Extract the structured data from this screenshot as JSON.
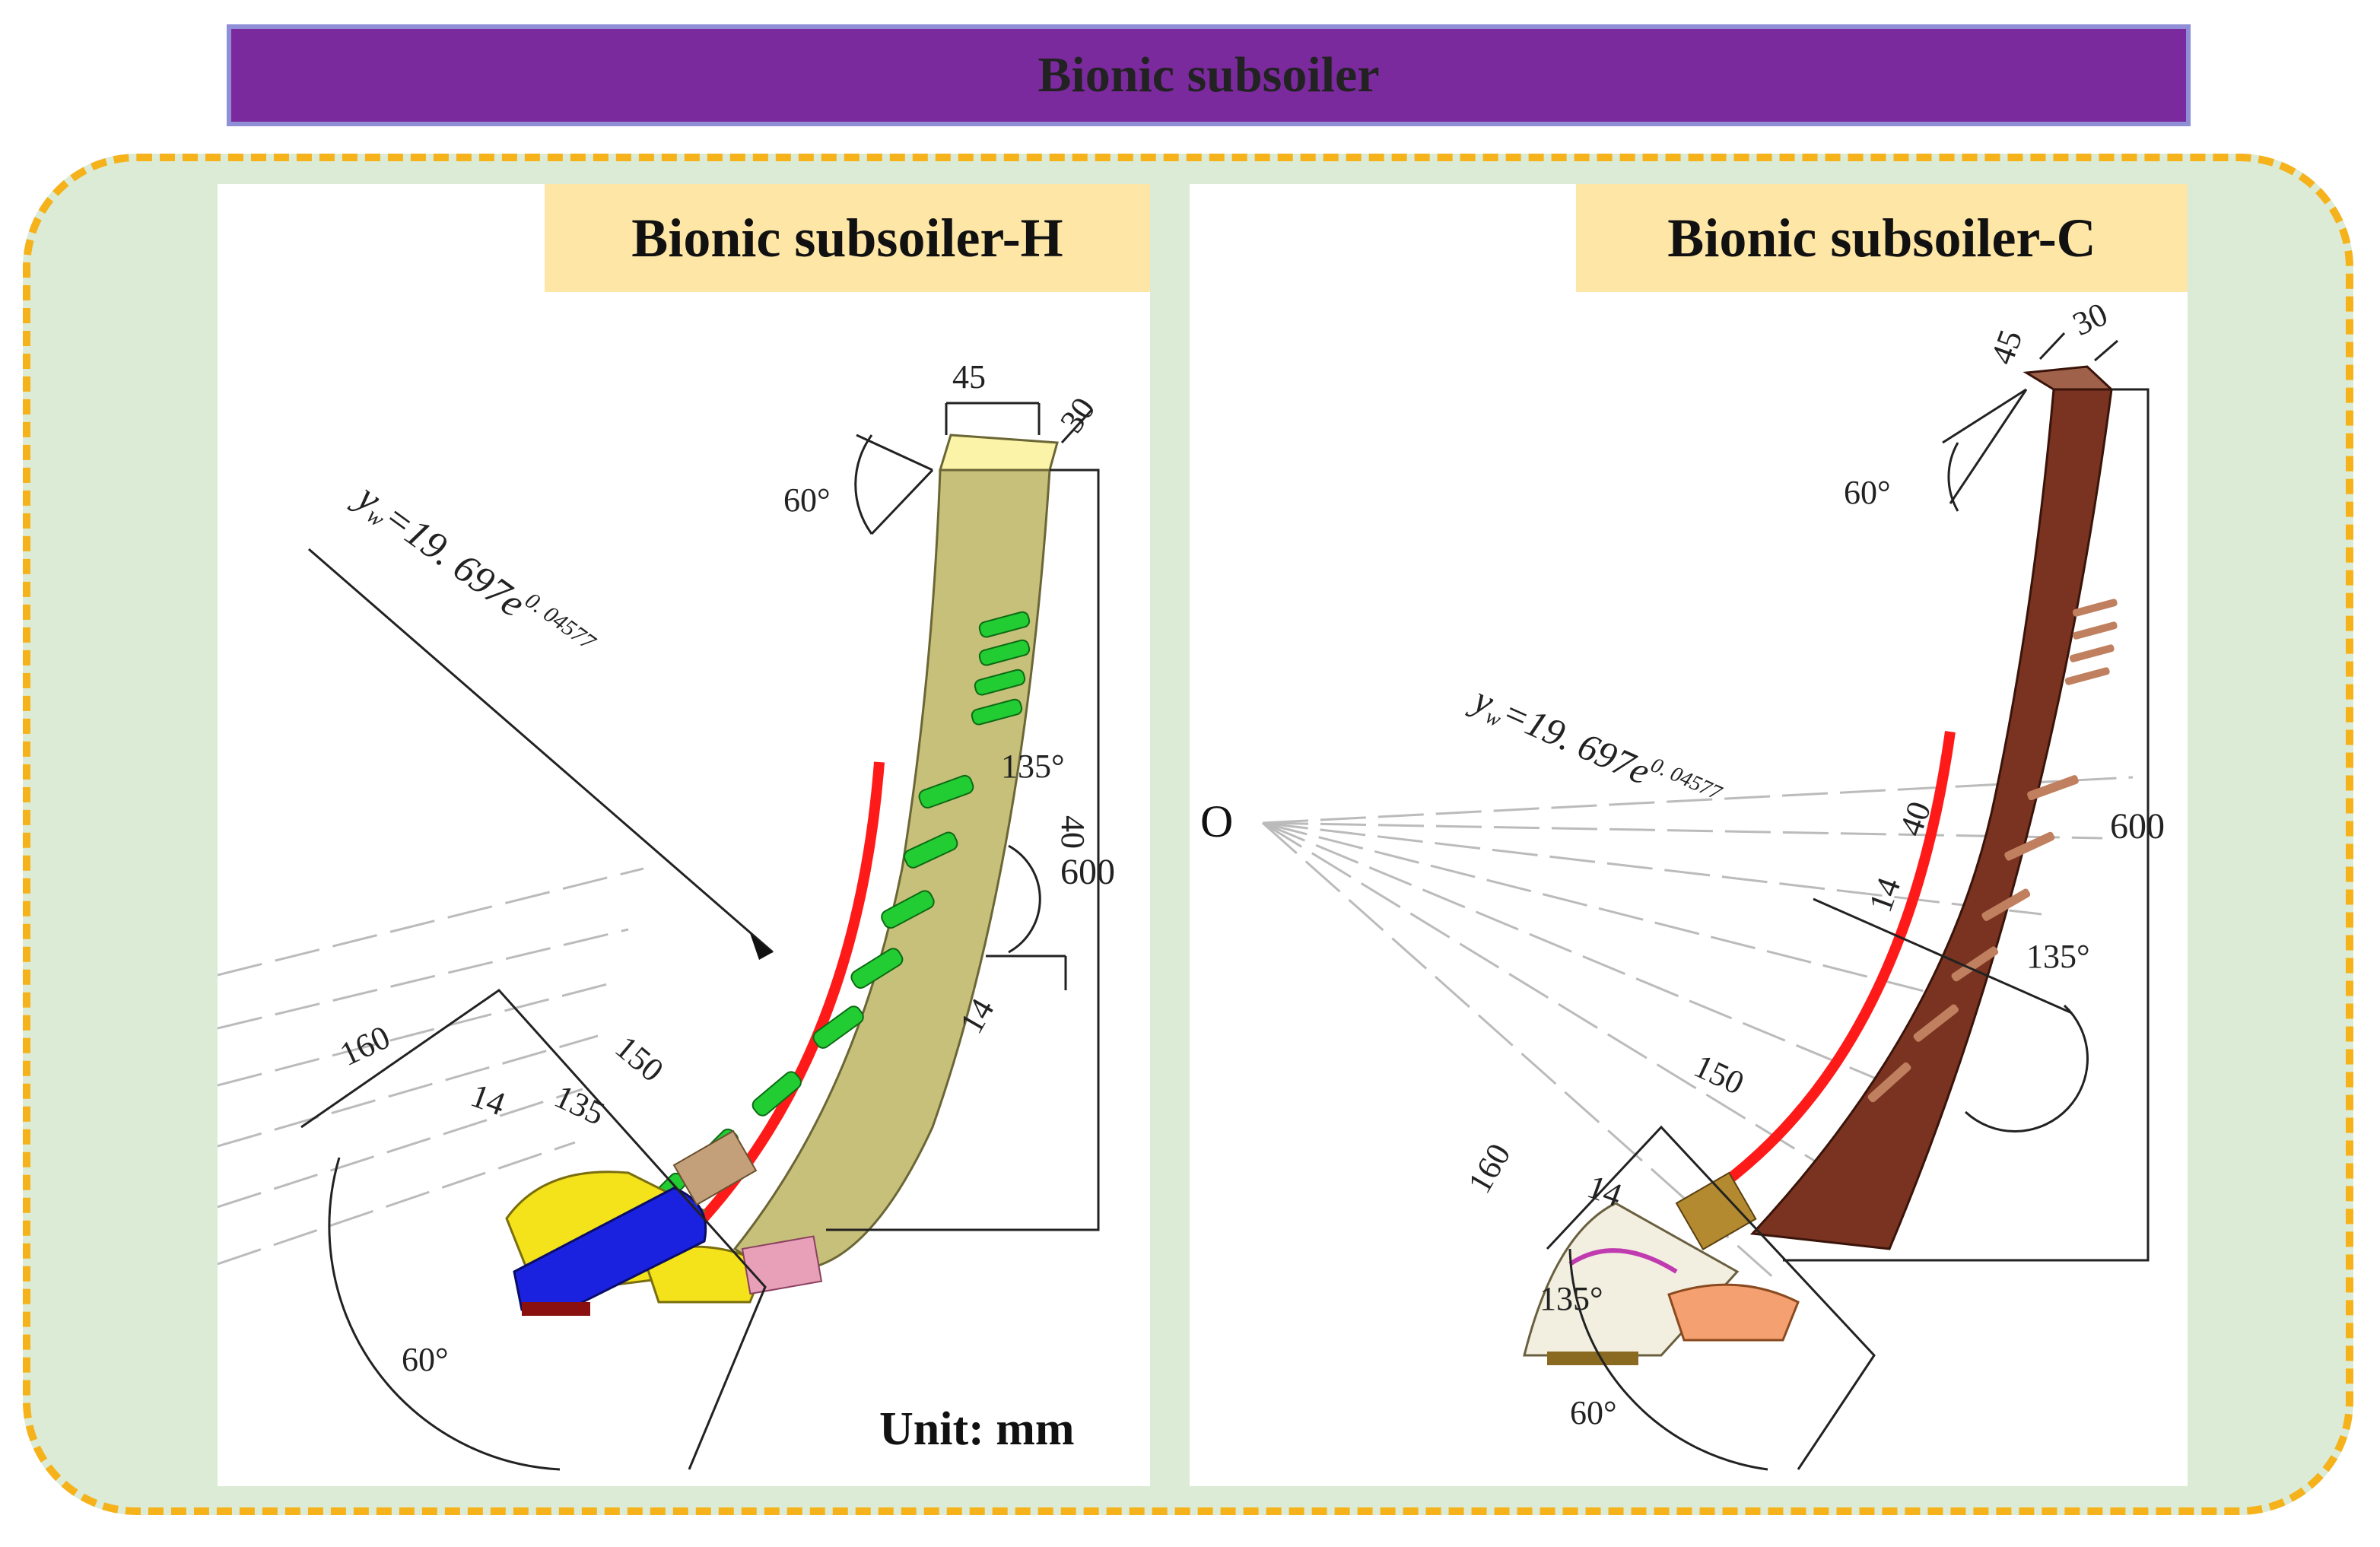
{
  "title": "Bionic subsoiler",
  "colors": {
    "banner": "#7b2a9e",
    "dashed_border": "#f5b21a",
    "frame_fill": "#dcebd6",
    "panel_label_fill": "#fde6a6",
    "shank_h": "#c7c07a",
    "shank_c": "#7a3320",
    "curve_red": "#ff1a1a",
    "tooth_green": "#22cc33",
    "tip_blue": "#1a22e0",
    "wing_yellow": "#f4e21a"
  },
  "panels": {
    "h": {
      "label": "Bionic subsoiler-H",
      "equation_main": "y",
      "equation_sub": "w",
      "equation_rest": "=19. 697e",
      "equation_exp": "0. 04577",
      "dims": {
        "width_top": "45",
        "thickness": "30",
        "angle_top": "60°",
        "angle_side": "135°",
        "d40": "40",
        "height": "600",
        "d14_upper": "14",
        "d160": "160",
        "d14_lower": "14",
        "d135": "135",
        "d150": "150",
        "angle_bottom": "60°"
      },
      "unit": "Unit: mm"
    },
    "c": {
      "label": "Bionic subsoiler-C",
      "origin": "O",
      "equation_main": "y",
      "equation_sub": "w",
      "equation_rest": "=19. 697e",
      "equation_exp": "0. 04577",
      "dims": {
        "width_top": "45",
        "thickness": "30",
        "angle_top": "60°",
        "height": "600",
        "d40": "40",
        "d14_upper": "14",
        "angle_side": "135°",
        "d150": "150",
        "d160": "160",
        "d14_lower": "14",
        "angle_tip": "135°",
        "angle_bottom": "60°"
      }
    }
  }
}
